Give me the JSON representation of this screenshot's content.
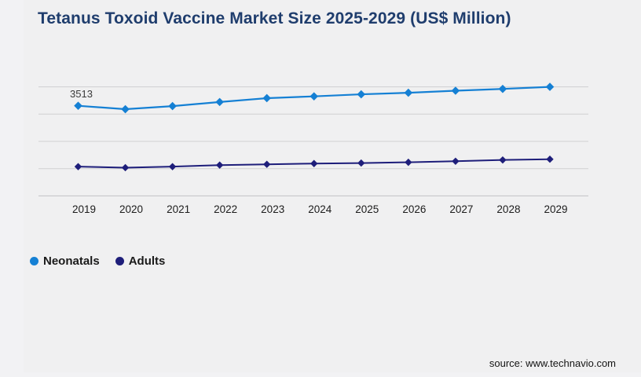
{
  "title": {
    "text": "Tetanus Toxoid Vaccine Market Size 2025-2029 (US$ Million)",
    "color": "#1f3d6d"
  },
  "source": {
    "text": "source: www.technavio.com"
  },
  "chart_data": {
    "type": "line",
    "title": "Tetanus Toxoid Vaccine Market Size 2025-2029 (US$ Million)",
    "x": [
      "2019",
      "2020",
      "2021",
      "2022",
      "2023",
      "2024",
      "2025",
      "2026",
      "2027",
      "2028",
      "2029"
    ],
    "series": [
      {
        "name": "Neonatals",
        "color": "#1580d4",
        "marker": "diamond",
        "values": [
          3513,
          3380,
          3500,
          3660,
          3810,
          3880,
          3960,
          4020,
          4100,
          4170,
          4250
        ]
      },
      {
        "name": "Adults",
        "color": "#1e1e7a",
        "marker": "diamond",
        "values": [
          1140,
          1100,
          1140,
          1200,
          1230,
          1260,
          1280,
          1310,
          1350,
          1400,
          1430
        ]
      }
    ],
    "data_labels": [
      {
        "series": "Neonatals",
        "x": "2019",
        "text": "3513"
      }
    ],
    "xlabel": "",
    "ylabel": "",
    "ylim": [
      0,
      4250
    ],
    "y_axis_visible": false,
    "grid": "horizontal",
    "gridline_count": 5,
    "legend_position": "bottom-left",
    "tick_color": "#1c1c1c",
    "grid_color": "#cfcfd1",
    "axis_color": "#c2c2c4",
    "annotation_color": "#3a3a3a"
  }
}
